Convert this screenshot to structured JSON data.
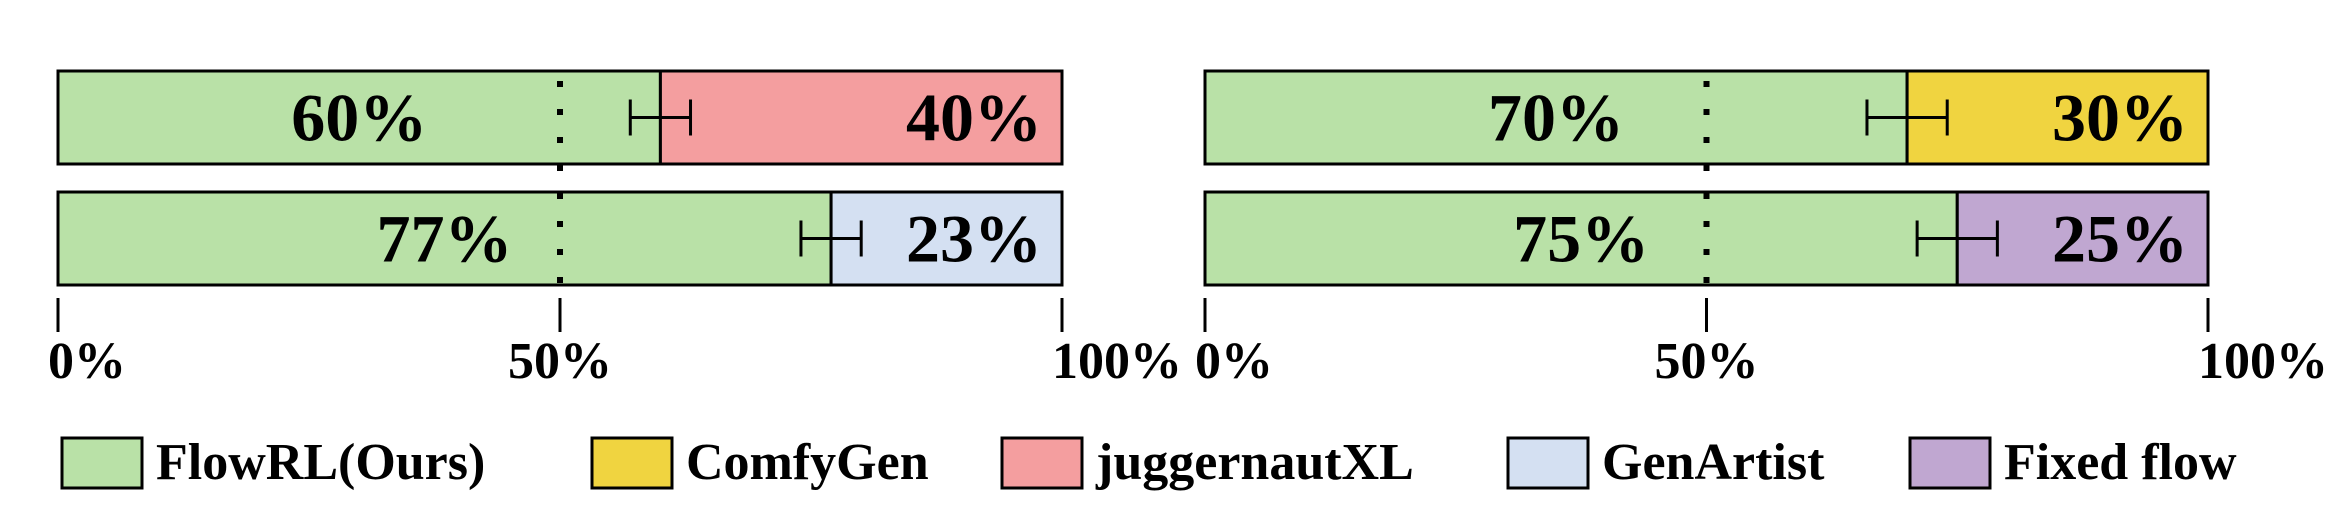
{
  "chart_data": {
    "type": "bar",
    "orientation": "horizontal-stacked-percent",
    "panels": [
      {
        "rows": [
          {
            "ours": 60,
            "other": 40,
            "ours_label": "60%",
            "other_label": "40%",
            "competitor": "juggernautXL",
            "error": [
              57,
              63
            ]
          },
          {
            "ours": 77,
            "other": 23,
            "ours_label": "77%",
            "other_label": "23%",
            "competitor": "GenArtist",
            "error": [
              74,
              80
            ]
          }
        ],
        "ticks": [
          "0%",
          "50%",
          "100%"
        ]
      },
      {
        "rows": [
          {
            "ours": 70,
            "other": 30,
            "ours_label": "70%",
            "other_label": "30%",
            "competitor": "ComfyGen",
            "error": [
              66,
              74
            ]
          },
          {
            "ours": 75,
            "other": 25,
            "ours_label": "75%",
            "other_label": "25%",
            "competitor": "Fixed flow",
            "error": [
              71,
              79
            ]
          }
        ],
        "ticks": [
          "0%",
          "50%",
          "100%"
        ]
      }
    ],
    "xlim": [
      0,
      100
    ],
    "reference_line": 50,
    "legend": [
      {
        "name": "FlowRL(Ours)",
        "color": "#b9e1a7"
      },
      {
        "name": "ComfyGen",
        "color": "#f0d440"
      },
      {
        "name": "juggernautXL",
        "color": "#f49e9f"
      },
      {
        "name": "GenArtist",
        "color": "#d4e0f2"
      },
      {
        "name": "Fixed flow",
        "color": "#c0a7d1"
      }
    ],
    "legend_position": "bottom"
  }
}
